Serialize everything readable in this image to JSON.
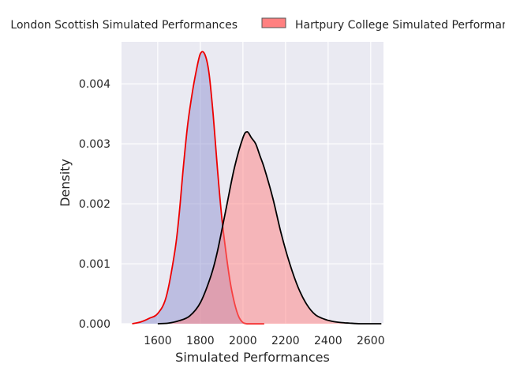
{
  "chart_data": {
    "type": "area",
    "title": "",
    "xlabel": "Simulated Performances",
    "ylabel": "Density",
    "xlim": [
      1430,
      2660
    ],
    "ylim": [
      0,
      0.0047
    ],
    "xticks": [
      1600,
      1800,
      2000,
      2200,
      2400,
      2600
    ],
    "yticks": [
      0.0,
      0.001,
      0.002,
      0.003,
      0.004
    ],
    "xtick_labels": [
      "1600",
      "1800",
      "2000",
      "2200",
      "2400",
      "2600"
    ],
    "ytick_labels": [
      "0.000",
      "0.001",
      "0.002",
      "0.003",
      "0.004"
    ],
    "grid": true,
    "legend_position": "top",
    "colors": {
      "background": "#eaeaf2",
      "grid": "#ffffff",
      "series_a_fill": "#8f91d0",
      "series_a_line": "#ee0000",
      "series_b_fill": "#ff8080",
      "series_b_line": "#000000"
    },
    "series": [
      {
        "name": "London Scottish Simulated Performances",
        "x": [
          1480,
          1520,
          1560,
          1600,
          1640,
          1680,
          1700,
          1720,
          1740,
          1760,
          1780,
          1800,
          1820,
          1840,
          1860,
          1880,
          1900,
          1920,
          1940,
          1960,
          1980,
          2000,
          2020,
          2040,
          2060,
          2080,
          2100
        ],
        "y": [
          0.0,
          3e-05,
          9e-05,
          0.00017,
          0.00045,
          0.0012,
          0.0018,
          0.0026,
          0.0033,
          0.0038,
          0.0042,
          0.0045,
          0.0045,
          0.0042,
          0.0035,
          0.0026,
          0.0018,
          0.0012,
          0.0007,
          0.00035,
          0.00012,
          2e-05,
          0.0,
          0.0,
          0.0,
          0.0,
          0.0
        ]
      },
      {
        "name": "Hartpury College Simulated Performances",
        "x": [
          1600,
          1650,
          1700,
          1750,
          1800,
          1850,
          1880,
          1920,
          1960,
          2000,
          2020,
          2040,
          2060,
          2080,
          2100,
          2140,
          2180,
          2220,
          2260,
          2300,
          2340,
          2380,
          2420,
          2460,
          2500,
          2550,
          2600,
          2650
        ],
        "y": [
          0.0,
          1e-05,
          5e-05,
          0.00013,
          0.00035,
          0.0008,
          0.0012,
          0.0019,
          0.0026,
          0.0031,
          0.0032,
          0.0031,
          0.003,
          0.0028,
          0.0026,
          0.0021,
          0.0015,
          0.001,
          0.0006,
          0.00032,
          0.00015,
          8e-05,
          4e-05,
          2e-05,
          1e-05,
          0.0,
          0.0,
          0.0
        ]
      }
    ]
  }
}
